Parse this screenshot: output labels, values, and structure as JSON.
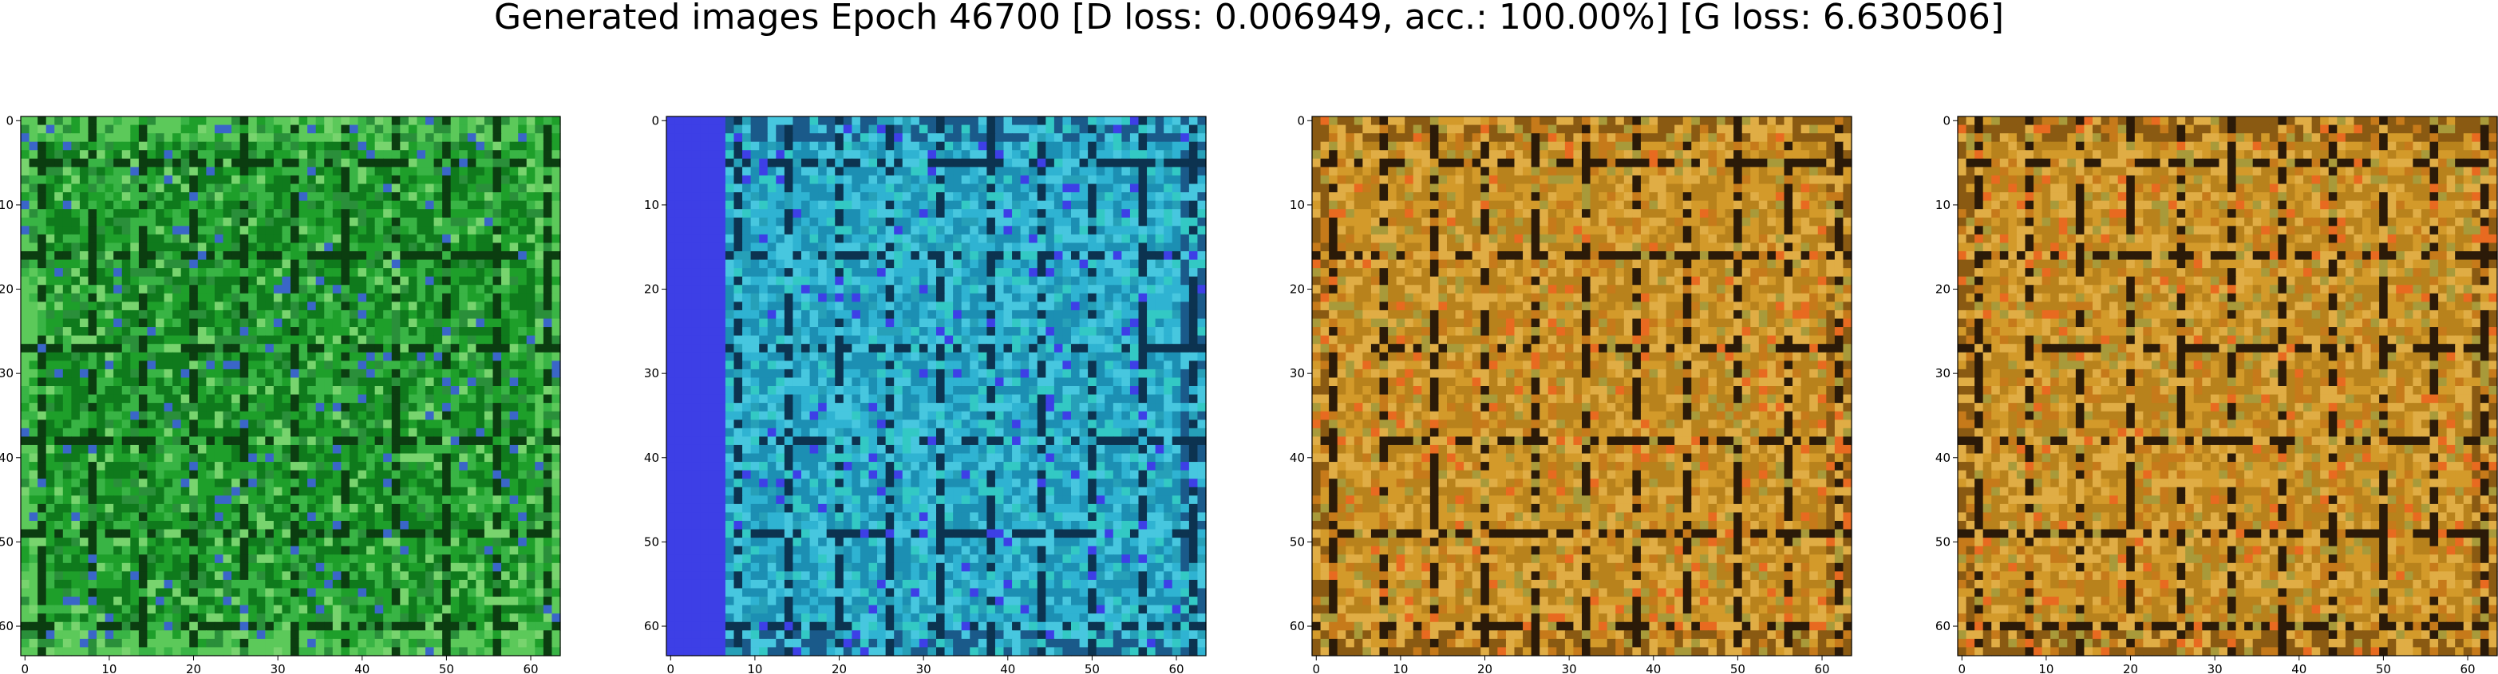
{
  "figure": {
    "title": "Generated images Epoch 46700 [D loss: 0.006949, acc.: 100.00%] [G loss: 6.630506]"
  },
  "panels": [
    {
      "name": "sample-image-1",
      "dominant_color": "#1f9a2e",
      "palette": [
        "#0f7a1c",
        "#1e9f2a",
        "#39b445",
        "#5cc95a",
        "#0b3d10",
        "#2a8f3a",
        "#78d46e",
        "#3a66c8"
      ],
      "xticks": [
        "0",
        "10",
        "20",
        "30",
        "40",
        "50",
        "60"
      ],
      "yticks": [
        "0",
        "10",
        "20",
        "30",
        "40",
        "50",
        "60"
      ]
    },
    {
      "name": "sample-image-2",
      "dominant_color": "#2fa7c9",
      "palette": [
        "#1c8fb3",
        "#2fb3d2",
        "#47c7df",
        "#1a5a8a",
        "#0c3350",
        "#33c9c4",
        "#26a0b8",
        "#3d3fe6"
      ],
      "xticks": [
        "0",
        "10",
        "20",
        "30",
        "40",
        "50",
        "60"
      ],
      "yticks": [
        "0",
        "10",
        "20",
        "30",
        "40",
        "50",
        "60"
      ]
    },
    {
      "name": "sample-image-3",
      "dominant_color": "#c08a1e",
      "palette": [
        "#b8821c",
        "#d39a2a",
        "#e0ad45",
        "#8a5a12",
        "#2b1a08",
        "#c67a1a",
        "#a89a3a",
        "#e86a20"
      ],
      "xticks": [
        "0",
        "10",
        "20",
        "30",
        "40",
        "50",
        "60"
      ],
      "yticks": [
        "0",
        "10",
        "20",
        "30",
        "40",
        "50",
        "60"
      ]
    },
    {
      "name": "sample-image-4",
      "dominant_color": "#c08a1e",
      "palette": [
        "#b8821c",
        "#d39a2a",
        "#e0ad45",
        "#8a5a12",
        "#2b1a08",
        "#c67a1a",
        "#a89a3a",
        "#e86a20"
      ],
      "xticks": [
        "0",
        "10",
        "20",
        "30",
        "40",
        "50",
        "60"
      ],
      "yticks": [
        "0",
        "10",
        "20",
        "30",
        "40",
        "50",
        "60"
      ]
    }
  ]
}
